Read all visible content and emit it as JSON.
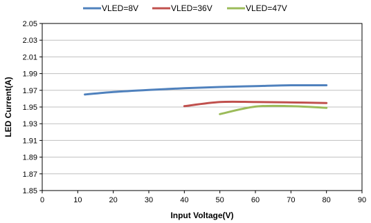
{
  "chart_data": {
    "type": "line",
    "title": "",
    "xlabel": "Input Voltage(V)",
    "ylabel": "LED Current(A)",
    "xlim": [
      0,
      90
    ],
    "ylim": [
      1.85,
      2.05
    ],
    "x_ticks": [
      "0",
      "10",
      "20",
      "30",
      "40",
      "50",
      "60",
      "70",
      "80",
      "90"
    ],
    "y_ticks": [
      "1.85",
      "1.87",
      "1.89",
      "1.91",
      "1.93",
      "1.95",
      "1.97",
      "1.99",
      "2.01",
      "2.03",
      "2.05"
    ],
    "grid": "horizontal",
    "legend_position": "top",
    "series": [
      {
        "name": "VLED=8V",
        "color": "#4F81BD",
        "x": [
          12,
          20,
          30,
          40,
          50,
          60,
          70,
          80
        ],
        "y": [
          1.965,
          1.968,
          1.9705,
          1.9725,
          1.974,
          1.975,
          1.976,
          1.976
        ]
      },
      {
        "name": "VLED=36V",
        "color": "#C0504D",
        "x": [
          40,
          50,
          60,
          70,
          80
        ],
        "y": [
          1.951,
          1.956,
          1.956,
          1.9555,
          1.9548
        ]
      },
      {
        "name": "VLED=47V",
        "color": "#9BBB59",
        "x": [
          50,
          60,
          70,
          80
        ],
        "y": [
          1.9415,
          1.9505,
          1.951,
          1.949
        ]
      }
    ]
  }
}
